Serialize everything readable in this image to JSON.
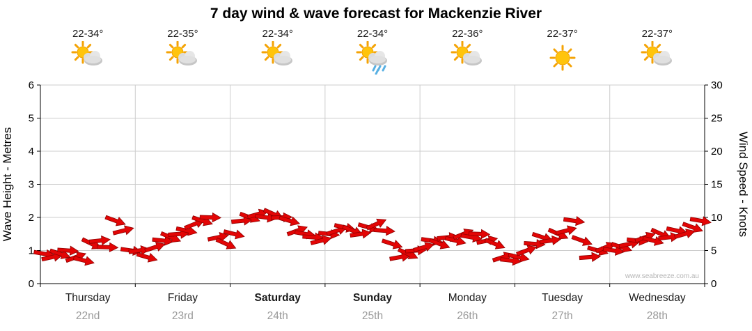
{
  "title": "7 day wind & wave forecast for Mackenzie River",
  "watermark": "www.seabreeze.com.au",
  "days": [
    {
      "name": "Thursday",
      "date": "22nd",
      "temp": "22-34°",
      "icon": "partly-cloudy",
      "weekend": false
    },
    {
      "name": "Friday",
      "date": "23rd",
      "temp": "22-35°",
      "icon": "partly-cloudy",
      "weekend": false
    },
    {
      "name": "Saturday",
      "date": "24th",
      "temp": "22-34°",
      "icon": "partly-cloudy",
      "weekend": true
    },
    {
      "name": "Sunday",
      "date": "25th",
      "temp": "22-34°",
      "icon": "showers",
      "weekend": true
    },
    {
      "name": "Monday",
      "date": "26th",
      "temp": "22-36°",
      "icon": "partly-cloudy",
      "weekend": false
    },
    {
      "name": "Tuesday",
      "date": "27th",
      "temp": "22-37°",
      "icon": "sunny",
      "weekend": false
    },
    {
      "name": "Wednesday",
      "date": "28th",
      "temp": "22-37°",
      "icon": "partly-cloudy",
      "weekend": false
    }
  ],
  "chart_data": {
    "type": "scatter",
    "title": "7 day wind & wave forecast for Mackenzie River",
    "x_categories": [
      "Thursday 22nd",
      "Friday 23rd",
      "Saturday 24th",
      "Sunday 25th",
      "Monday 26th",
      "Tuesday 27th",
      "Wednesday 28th"
    ],
    "points_per_day": 12,
    "left_axis": {
      "label": "Wave Height - Metres",
      "min": 0,
      "max": 6,
      "tick_step": 1
    },
    "right_axis": {
      "label": "Wind Speed - Knots",
      "min": 0,
      "max": 30,
      "tick_step": 5
    },
    "grid": true,
    "legend": "none",
    "series": [
      {
        "name": "Wind speed",
        "unit": "knots",
        "values": [
          4.5,
          4,
          4.5,
          5,
          4,
          3.5,
          6,
          6.5,
          5.5,
          9.5,
          8,
          5,
          5,
          4,
          5.5,
          6.5,
          7,
          7.5,
          8,
          9,
          9.5,
          10,
          7,
          6,
          7.5,
          9.5,
          10,
          10.5,
          10,
          10.5,
          10,
          9.5,
          8,
          7.5,
          7,
          6.5,
          7.5,
          8,
          8.5,
          8,
          7.5,
          8.5,
          9,
          8,
          6,
          4,
          4.5,
          5,
          5.5,
          6.5,
          6,
          7,
          6.5,
          7.5,
          7,
          7.5,
          6.5,
          6,
          4,
          3.5,
          4,
          5,
          6,
          7,
          6.5,
          7.5,
          8,
          9.5,
          6.5,
          4,
          5,
          5.5,
          5,
          5.5,
          6,
          6.5,
          7,
          6.5,
          7.5,
          7,
          8,
          7.5,
          8.5,
          9.5
        ],
        "directions_deg": [
          10,
          -12,
          18,
          4,
          -20,
          14,
          26,
          -6,
          2,
          20,
          -14,
          8,
          -8,
          16,
          -18,
          6,
          22,
          -4,
          12,
          -22,
          18,
          2,
          -12,
          24,
          14,
          -6,
          20,
          -16,
          8,
          24,
          -2,
          16,
          -20,
          10,
          4,
          -14,
          6,
          -18,
          12,
          22,
          -8,
          16,
          -24,
          4,
          18,
          -10,
          24,
          -4,
          -16,
          8,
          20,
          -6,
          14,
          -22,
          10,
          2,
          -12,
          22,
          -18,
          6,
          12,
          -20,
          4,
          18,
          -8,
          24,
          -14,
          8,
          20,
          -4,
          16,
          -22,
          8,
          18,
          -12,
          6,
          -20,
          14,
          24,
          -6,
          12,
          -16,
          20,
          10
        ]
      }
    ],
    "colors": {
      "arrow_fill": "#E30505",
      "arrow_stroke": "#8F0000",
      "grid": "#CCCCCC",
      "axis": "#000000",
      "day_name": "#1a1a1a",
      "day_date": "#9A9A9A",
      "watermark": "#B5B5B5"
    }
  }
}
